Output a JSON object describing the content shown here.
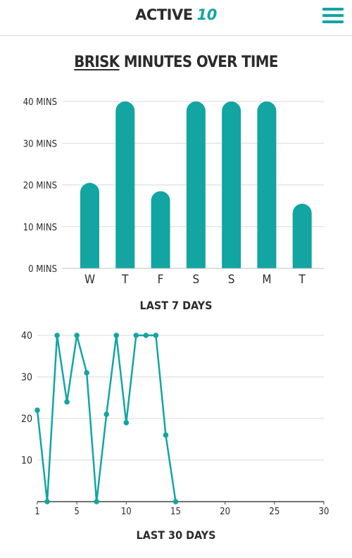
{
  "header": {
    "brand_part1": "ACTIVE",
    "brand_part2": "10"
  },
  "page": {
    "heading_underlined": "BRISK",
    "heading_rest": "MINUTES OVER TIME"
  },
  "colors": {
    "accent": "#12a5a2",
    "text": "#2b2b2b",
    "grid": "#d9d9d9"
  },
  "icons": {
    "menu": "hamburger-menu-icon"
  },
  "chart_data": [
    {
      "type": "bar",
      "title": "LAST 7 DAYS",
      "categories": [
        "W",
        "T",
        "F",
        "S",
        "S",
        "M",
        "T"
      ],
      "values": [
        20.5,
        40,
        18.5,
        40,
        40,
        40,
        15.5
      ],
      "y_ticks": [
        "0 MINS",
        "10 MINS",
        "20 MINS",
        "30 MINS",
        "40 MINS"
      ],
      "ylim": [
        0,
        40
      ],
      "grid": true
    },
    {
      "type": "line",
      "title": "LAST 30 DAYS",
      "x": [
        1,
        2,
        3,
        4,
        5,
        6,
        7,
        8,
        9,
        10,
        11,
        12,
        13,
        14,
        15
      ],
      "y": [
        22,
        0,
        40,
        24,
        40,
        31,
        0,
        21,
        40,
        19,
        40,
        40,
        40,
        16,
        0
      ],
      "x_ticks": [
        "1",
        "5",
        "10",
        "15",
        "20",
        "25",
        "30"
      ],
      "y_ticks": [
        "10",
        "20",
        "30",
        "40"
      ],
      "xlim": [
        1,
        30
      ],
      "ylim": [
        0,
        40
      ],
      "grid": true
    }
  ]
}
